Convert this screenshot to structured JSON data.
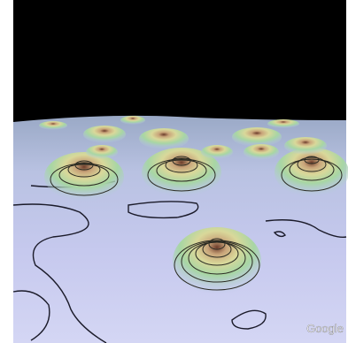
{
  "watermark": "Google"
}
